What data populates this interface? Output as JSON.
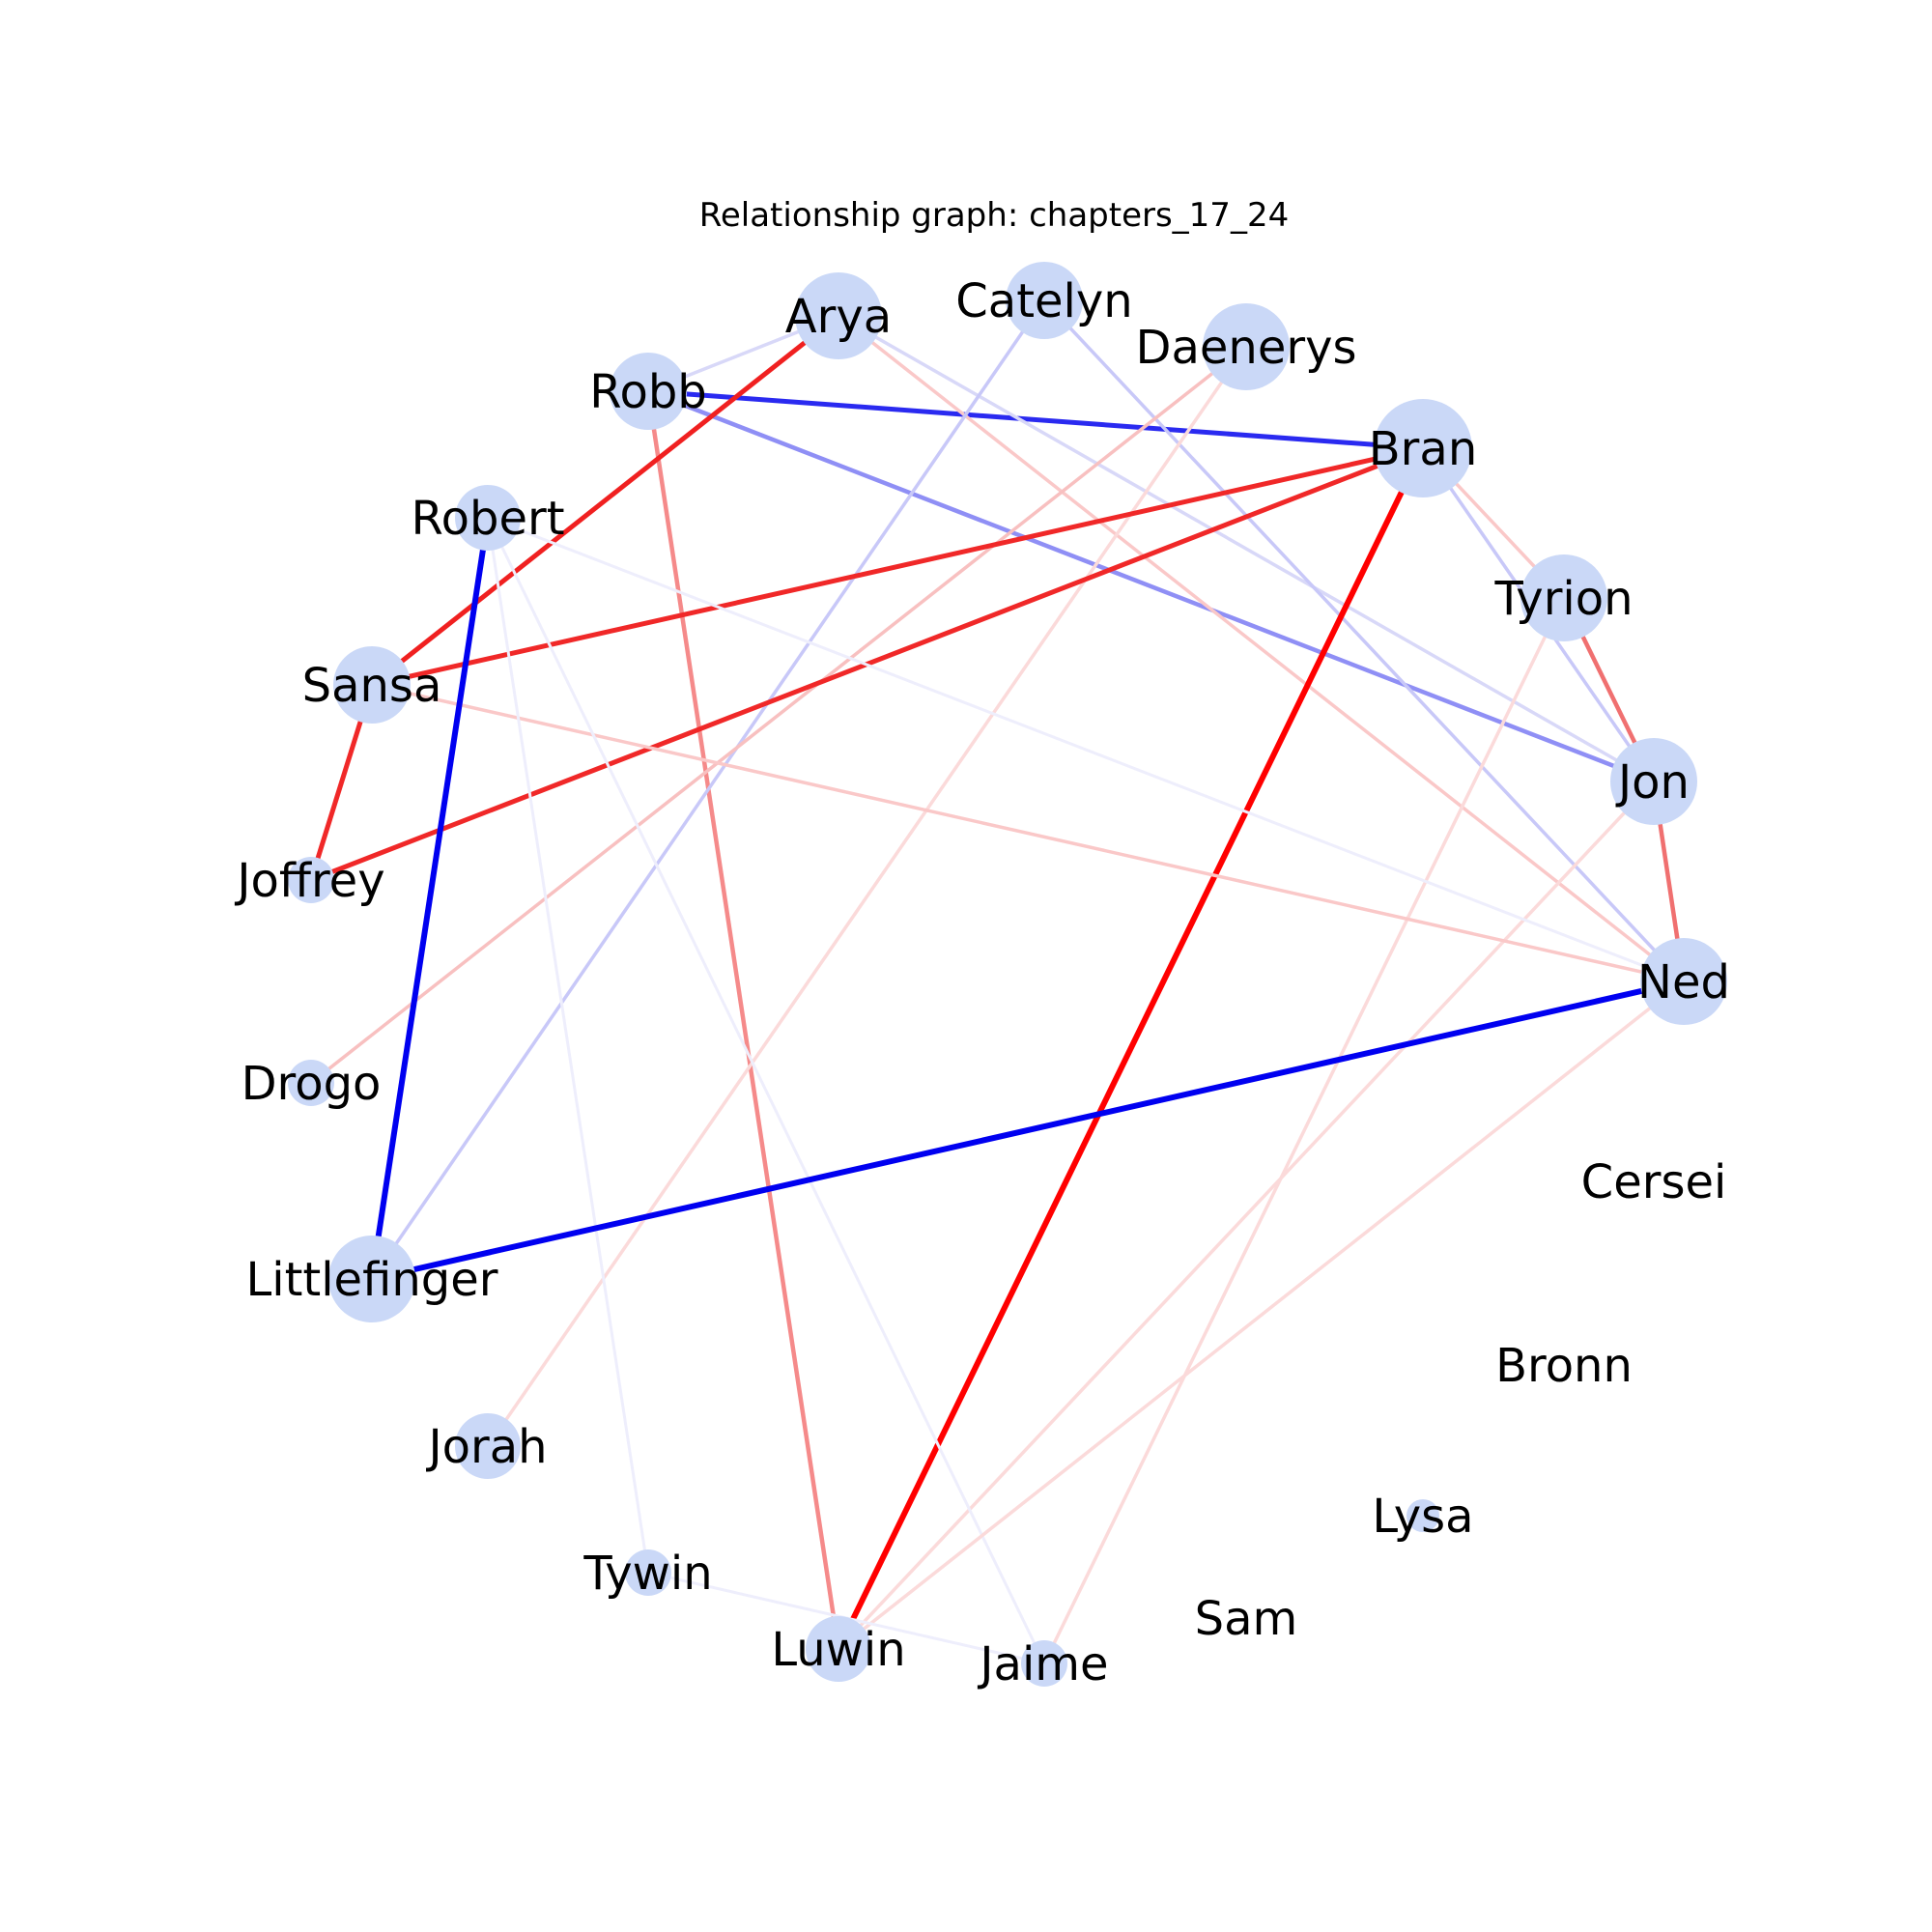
{
  "title": "Relationship graph: chapters_17_24",
  "node_color": "#cad8f7",
  "nodes": [
    {
      "id": "Arya",
      "label": "Arya",
      "size": "large"
    },
    {
      "id": "Catelyn",
      "label": "Catelyn",
      "size": "medium"
    },
    {
      "id": "Daenerys",
      "label": "Daenerys",
      "size": "large"
    },
    {
      "id": "Robb",
      "label": "Robb",
      "size": "medium"
    },
    {
      "id": "Bran",
      "label": "Bran",
      "size": "xlarge"
    },
    {
      "id": "Robert",
      "label": "Robert",
      "size": "small"
    },
    {
      "id": "Tyrion",
      "label": "Tyrion",
      "size": "large"
    },
    {
      "id": "Sansa",
      "label": "Sansa",
      "size": "medium"
    },
    {
      "id": "Jon",
      "label": "Jon",
      "size": "large"
    },
    {
      "id": "Joffrey",
      "label": "Joffrey",
      "size": "tiny"
    },
    {
      "id": "Ned",
      "label": "Ned",
      "size": "large"
    },
    {
      "id": "Drogo",
      "label": "Drogo",
      "size": "tiny"
    },
    {
      "id": "Cersei",
      "label": "Cersei",
      "size": "none"
    },
    {
      "id": "Littlefinger",
      "label": "Littlefinger",
      "size": "large"
    },
    {
      "id": "Bronn",
      "label": "Bronn",
      "size": "none"
    },
    {
      "id": "Jorah",
      "label": "Jorah",
      "size": "small"
    },
    {
      "id": "Lysa",
      "label": "Lysa",
      "size": "micro"
    },
    {
      "id": "Tywin",
      "label": "Tywin",
      "size": "tiny"
    },
    {
      "id": "Sam",
      "label": "Sam",
      "size": "none"
    },
    {
      "id": "Luwin",
      "label": "Luwin",
      "size": "small"
    },
    {
      "id": "Jaime",
      "label": "Jaime",
      "size": "tiny"
    }
  ],
  "edges": [
    {
      "source": "Robb",
      "target": "Bran",
      "color": "#2a2af0",
      "strength": "strong"
    },
    {
      "source": "Robb",
      "target": "Jon",
      "color": "#8f8ff5",
      "strength": "medium"
    },
    {
      "source": "Robb",
      "target": "Arya",
      "color": "#d8d8f8",
      "strength": "weak"
    },
    {
      "source": "Robb",
      "target": "Luwin",
      "color": "#f58a8a",
      "strength": "medium"
    },
    {
      "source": "Arya",
      "target": "Sansa",
      "color": "#f02020",
      "strength": "strong"
    },
    {
      "source": "Arya",
      "target": "Ned",
      "color": "#fac8c8",
      "strength": "weak"
    },
    {
      "source": "Arya",
      "target": "Jon",
      "color": "#d8d8f8",
      "strength": "weak"
    },
    {
      "source": "Catelyn",
      "target": "Littlefinger",
      "color": "#c8c8f8",
      "strength": "weak"
    },
    {
      "source": "Catelyn",
      "target": "Ned",
      "color": "#c8c8f8",
      "strength": "weak"
    },
    {
      "source": "Daenerys",
      "target": "Drogo",
      "color": "#f8c0c0",
      "strength": "weak"
    },
    {
      "source": "Daenerys",
      "target": "Jorah",
      "color": "#fbdada",
      "strength": "weak"
    },
    {
      "source": "Bran",
      "target": "Sansa",
      "color": "#f02828",
      "strength": "strong"
    },
    {
      "source": "Bran",
      "target": "Joffrey",
      "color": "#f02828",
      "strength": "strong"
    },
    {
      "source": "Bran",
      "target": "Luwin",
      "color": "#ff0000",
      "strength": "strongest"
    },
    {
      "source": "Bran",
      "target": "Tyrion",
      "color": "#fac8c8",
      "strength": "weak"
    },
    {
      "source": "Bran",
      "target": "Jon",
      "color": "#c8c8f8",
      "strength": "weak"
    },
    {
      "source": "Tyrion",
      "target": "Jon",
      "color": "#f07070",
      "strength": "medium"
    },
    {
      "source": "Tyrion",
      "target": "Jaime",
      "color": "#fbdada",
      "strength": "weak"
    },
    {
      "source": "Jon",
      "target": "Ned",
      "color": "#f07070",
      "strength": "medium"
    },
    {
      "source": "Jon",
      "target": "Luwin",
      "color": "#fbdada",
      "strength": "weak"
    },
    {
      "source": "Sansa",
      "target": "Joffrey",
      "color": "#f02828",
      "strength": "strong"
    },
    {
      "source": "Sansa",
      "target": "Ned",
      "color": "#fac8c8",
      "strength": "weak"
    },
    {
      "source": "Robert",
      "target": "Littlefinger",
      "color": "#0000f0",
      "strength": "strongest"
    },
    {
      "source": "Robert",
      "target": "Ned",
      "color": "#eeeefc",
      "strength": "faint"
    },
    {
      "source": "Robert",
      "target": "Tywin",
      "color": "#eeeefc",
      "strength": "faint"
    },
    {
      "source": "Robert",
      "target": "Jaime",
      "color": "#eeeefc",
      "strength": "faint"
    },
    {
      "source": "Ned",
      "target": "Littlefinger",
      "color": "#0000f0",
      "strength": "strongest"
    },
    {
      "source": "Ned",
      "target": "Luwin",
      "color": "#fbdada",
      "strength": "weak"
    },
    {
      "source": "Tywin",
      "target": "Jaime",
      "color": "#eeeefc",
      "strength": "faint"
    }
  ]
}
